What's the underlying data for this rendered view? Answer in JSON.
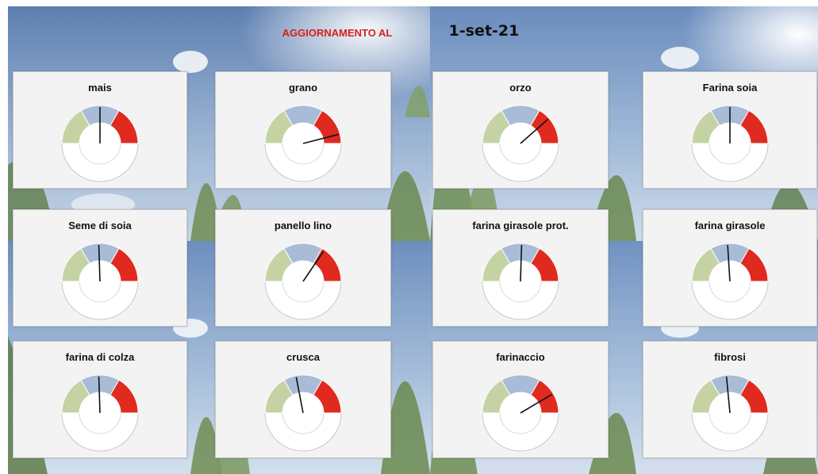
{
  "header": {
    "label": "AGGIORNAMENTO AL",
    "date": "1-set-21"
  },
  "colors": {
    "green_zone": "#c5d3a4",
    "blue_zone": "#a8bcd8",
    "red_zone": "#e02a1f",
    "needle": "#111111",
    "card_bg": "#f3f3f3",
    "header_label": "#d6201e"
  },
  "gauges": [
    {
      "name": "mais",
      "value": 0.5
    },
    {
      "name": "grano",
      "value": 0.92
    },
    {
      "name": "orzo",
      "value": 0.77
    },
    {
      "name": "Farina soia",
      "value": 0.5
    },
    {
      "name": "Seme di soia",
      "value": 0.49
    },
    {
      "name": "panello lino",
      "value": 0.69
    },
    {
      "name": "farina girasole prot.",
      "value": 0.51
    },
    {
      "name": "farina girasole",
      "value": 0.48
    },
    {
      "name": "farina di colza",
      "value": 0.49
    },
    {
      "name": "crusca",
      "value": 0.44
    },
    {
      "name": "farinaccio",
      "value": 0.83
    },
    {
      "name": "fibrosi",
      "value": 0.47
    }
  ]
}
